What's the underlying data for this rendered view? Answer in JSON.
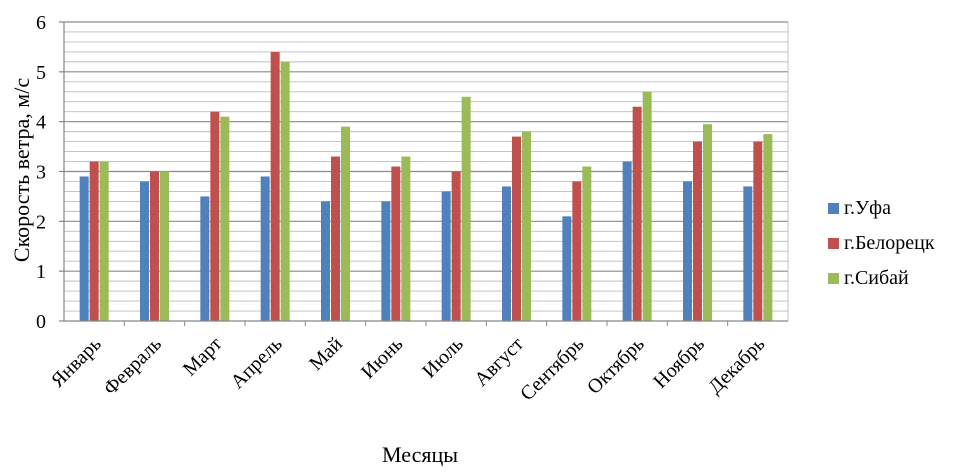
{
  "chart_data": {
    "type": "bar",
    "xlabel": "Месяцы",
    "ylabel": "Скорость ветра, м/с",
    "ylim": [
      0,
      6
    ],
    "y_major_ticks": [
      0,
      1,
      2,
      3,
      4,
      5,
      6
    ],
    "y_minor_step": 0.2,
    "grid": true,
    "legend_position": "right",
    "categories": [
      "Январь",
      "Февраль",
      "Март",
      "Апрель",
      "Май",
      "Июнь",
      "Июль",
      "Август",
      "Сентябрь",
      "Октябрь",
      "Ноябрь",
      "Декабрь"
    ],
    "series": [
      {
        "name": "г.Уфа",
        "color": "#4f81bd",
        "values": [
          2.9,
          2.8,
          2.5,
          2.9,
          2.4,
          2.4,
          2.6,
          2.7,
          2.1,
          3.2,
          2.8,
          2.7
        ]
      },
      {
        "name": "г.Белорецк",
        "color": "#c0504d",
        "values": [
          3.2,
          3.0,
          4.2,
          5.4,
          3.3,
          3.1,
          3.0,
          3.7,
          2.8,
          4.3,
          3.6,
          3.6
        ]
      },
      {
        "name": "г.Сибай",
        "color": "#9bbb59",
        "values": [
          3.2,
          3.0,
          4.1,
          5.2,
          3.9,
          3.3,
          4.5,
          3.8,
          3.1,
          4.6,
          3.95,
          3.75
        ]
      }
    ]
  }
}
